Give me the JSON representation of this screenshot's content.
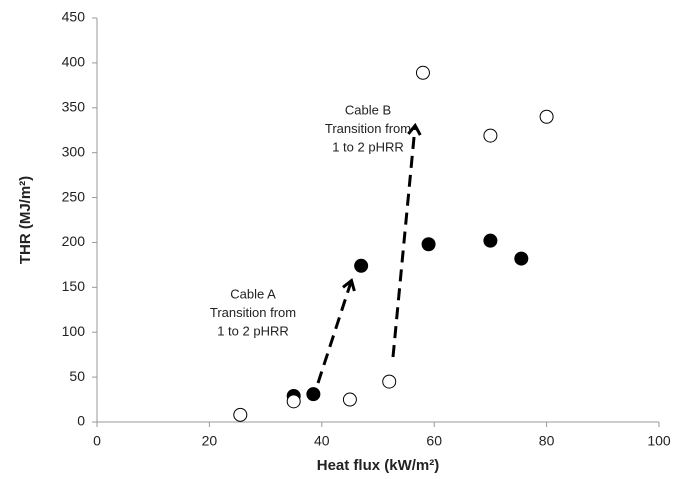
{
  "chart_data": {
    "type": "scatter",
    "x_label": "Heat flux (kW/m²)",
    "y_label": "THR (MJ/m²)",
    "xlim": [
      0,
      100
    ],
    "xticks": [
      0,
      20,
      40,
      60,
      80,
      100
    ],
    "ylim": [
      0,
      450
    ],
    "yticks": [
      0,
      50,
      100,
      150,
      200,
      250,
      300,
      350,
      400,
      450
    ],
    "grid": false,
    "series": [
      {
        "color": "#000000",
        "marker": "filled",
        "x": [
          35,
          38.5,
          47,
          59,
          70,
          75.5
        ],
        "values": [
          29,
          31,
          174,
          198,
          202,
          182
        ]
      },
      {
        "color": "#000000",
        "marker": "open",
        "x": [
          25.5,
          35,
          45,
          52,
          58,
          70,
          80
        ],
        "values": [
          8,
          23,
          25,
          45,
          389,
          319,
          340
        ]
      }
    ],
    "annotations": [
      {
        "lines": [
          "Cable A",
          "Transition from",
          "1 to 2 pHRR"
        ]
      },
      {
        "lines": [
          "Cable B",
          "Transition from",
          "1 to 2 pHRR"
        ]
      }
    ]
  }
}
